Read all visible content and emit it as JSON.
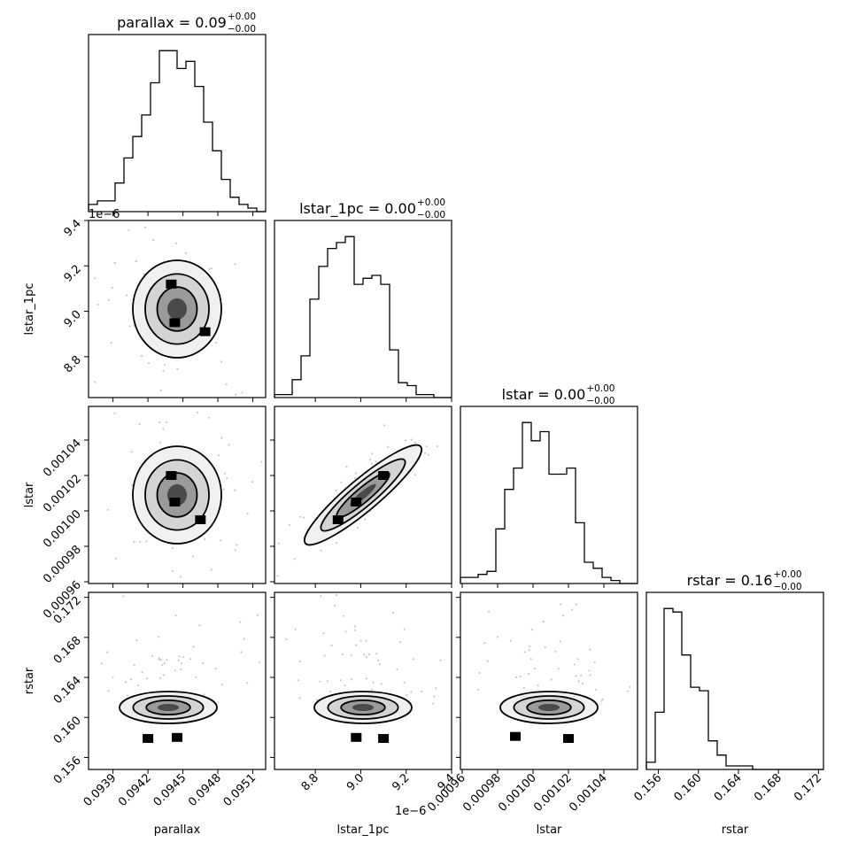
{
  "chart_data": {
    "type": "corner",
    "parameters": [
      "parallax",
      "lstar_1pc",
      "lstar",
      "rstar"
    ],
    "axis_labels": [
      "parallax",
      "lstar_1pc",
      "lstar",
      "rstar"
    ],
    "titles": [
      {
        "name": "parallax",
        "value": "0.09",
        "plus": "+0.00",
        "minus": "−0.00"
      },
      {
        "name": "lstar_1pc",
        "value": "0.00",
        "plus": "+0.00",
        "minus": "−0.00"
      },
      {
        "name": "lstar",
        "value": "0.00",
        "plus": "+0.00",
        "minus": "−0.00"
      },
      {
        "name": "rstar",
        "value": "0.16",
        "plus": "+0.00",
        "minus": "−0.00"
      }
    ],
    "ranges": [
      [
        0.09369,
        0.09521
      ],
      [
        8.62,
        9.4
      ],
      [
        0.000959,
        0.001059
      ],
      [
        0.1548,
        0.1725
      ]
    ],
    "ticks": [
      {
        "values": [
          0.0939,
          0.0942,
          0.0945,
          0.0948,
          0.0951
        ],
        "labels": [
          "0.0939",
          "0.0942",
          "0.0945",
          "0.0948",
          "0.0951"
        ]
      },
      {
        "values": [
          8.8,
          9.0,
          9.2,
          9.4
        ],
        "labels": [
          "8.8",
          "9.0",
          "9.2",
          "9.4"
        ]
      },
      {
        "values": [
          0.00096,
          0.00098,
          0.001,
          0.00102,
          0.00104
        ],
        "labels": [
          "0.00096",
          "0.00098",
          "0.00100",
          "0.00102",
          "0.00104"
        ]
      },
      {
        "values": [
          0.156,
          0.16,
          0.164,
          0.168,
          0.172
        ],
        "labels": [
          "0.156",
          "0.160",
          "0.164",
          "0.168",
          "0.172"
        ]
      }
    ],
    "offset_texts": {
      "lstar_1pc_y": "1e−6",
      "lstar_1pc_x": "1e−6"
    },
    "histograms": [
      {
        "param": "parallax",
        "counts": [
          2,
          3,
          3,
          8,
          15,
          21,
          27,
          36,
          45,
          45,
          40,
          42,
          35,
          25,
          17,
          9,
          4,
          2,
          1,
          0
        ]
      },
      {
        "param": "lstar_1pc",
        "counts": [
          1,
          1,
          6,
          14,
          33,
          44,
          50,
          52,
          54,
          38,
          40,
          41,
          38,
          16,
          5,
          4,
          1,
          1,
          0,
          0
        ]
      },
      {
        "param": "lstar",
        "counts": [
          2,
          2,
          3,
          4,
          18,
          31,
          38,
          53,
          47,
          50,
          36,
          36,
          38,
          20,
          7,
          5,
          2,
          1,
          0,
          0
        ]
      },
      {
        "param": "rstar",
        "counts": [
          2,
          16,
          45,
          44,
          32,
          23,
          22,
          8,
          4,
          1,
          1,
          1,
          0,
          0,
          0,
          0,
          0,
          0,
          0,
          0
        ]
      }
    ],
    "peaks": [
      {
        "x": "parallax",
        "y": "lstar_1pc",
        "points": [
          [
            0.09469,
            8.91
          ],
          [
            0.09443,
            8.95
          ],
          [
            0.0944,
            9.12
          ]
        ]
      },
      {
        "x": "parallax",
        "y": "lstar",
        "points": [
          [
            0.09443,
            0.001005
          ],
          [
            0.0944,
            0.00102
          ],
          [
            0.09465,
            0.000995
          ]
        ]
      },
      {
        "x": "lstar_1pc",
        "y": "lstar",
        "points": [
          [
            8.98,
            0.001005
          ],
          [
            8.9,
            0.000995
          ],
          [
            9.1,
            0.00102
          ]
        ]
      },
      {
        "x": "parallax",
        "y": "rstar",
        "points": [
          [
            0.0942,
            0.1579
          ],
          [
            0.09445,
            0.158
          ]
        ]
      },
      {
        "x": "lstar_1pc",
        "y": "rstar",
        "points": [
          [
            9.1,
            0.1579
          ],
          [
            8.98,
            0.158
          ]
        ]
      },
      {
        "x": "lstar",
        "y": "rstar",
        "points": [
          [
            0.00102,
            0.1579
          ],
          [
            0.00099,
            0.1581
          ]
        ]
      }
    ],
    "grid": false
  }
}
